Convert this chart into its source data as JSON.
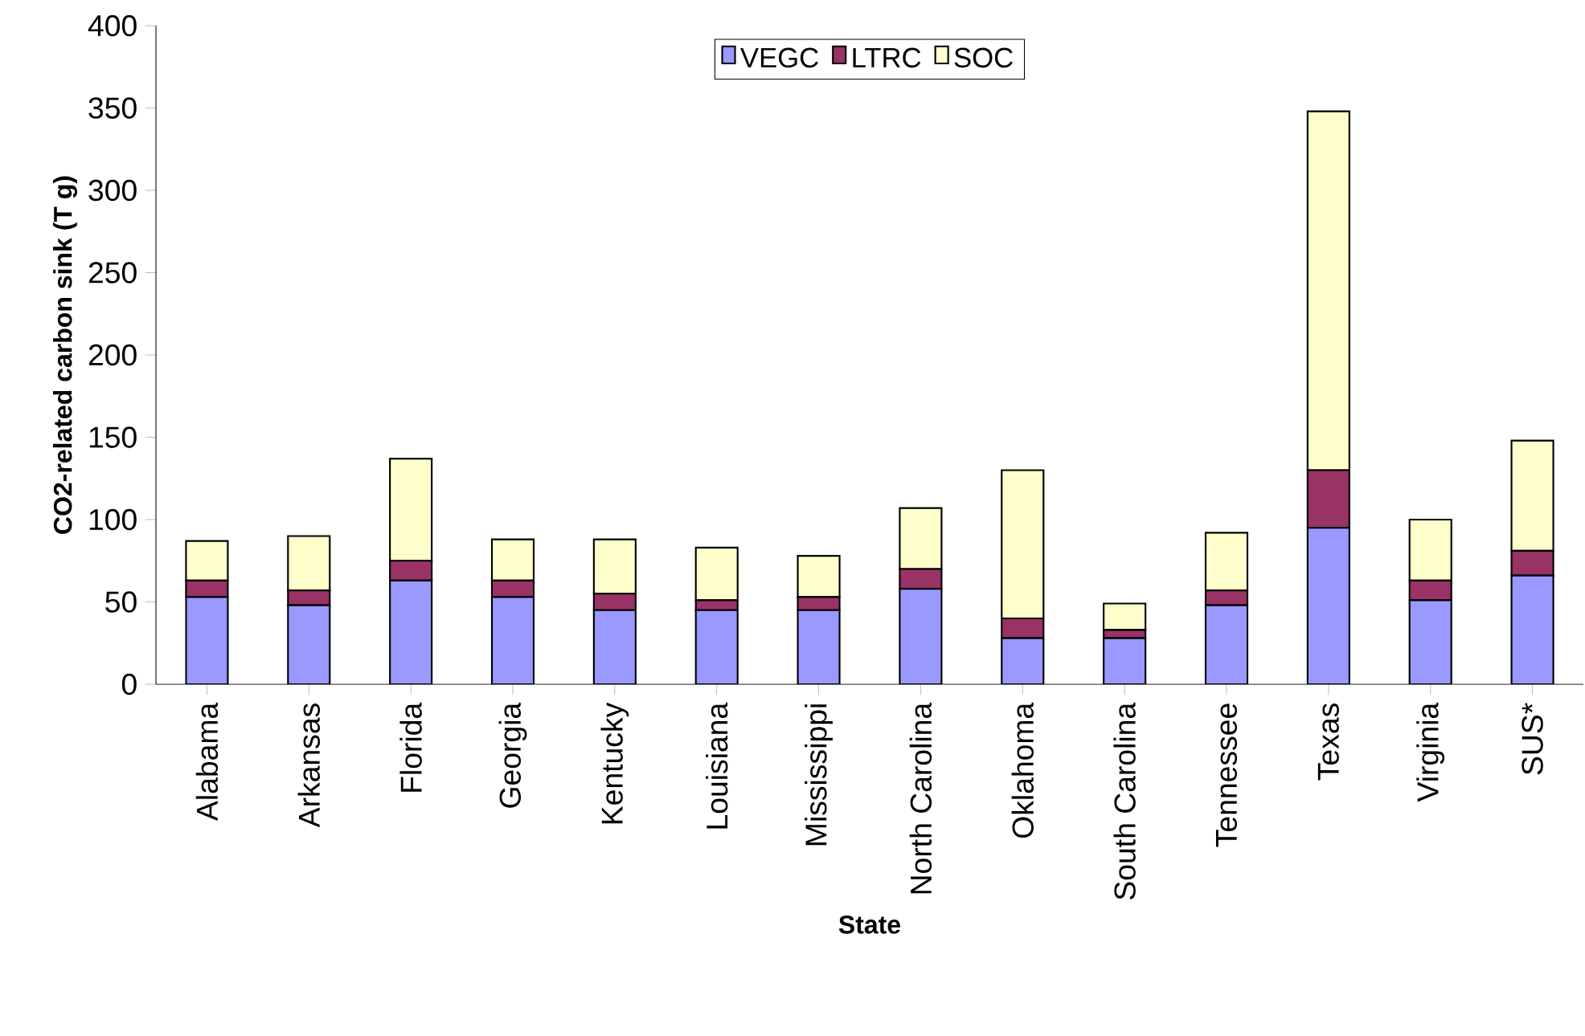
{
  "chart_data": {
    "type": "bar",
    "stacked": true,
    "xlabel": "State",
    "ylabel": "CO2-related carbon sink (T g)",
    "legend": "top",
    "categories": [
      "Alabama",
      "Arkansas",
      "Florida",
      "Georgia",
      "Kentucky",
      "Louisiana",
      "Mississippi",
      "North Carolina",
      "Oklahoma",
      "South Carolina",
      "Tennessee",
      "Texas",
      "Virginia",
      "SUS*"
    ],
    "ylim": [
      0,
      400
    ],
    "yticks": [
      0,
      50,
      100,
      150,
      200,
      250,
      300,
      350,
      400
    ],
    "series": [
      {
        "name": "VEGC",
        "color": "#9999ff",
        "values": [
          53,
          48,
          63,
          53,
          45,
          45,
          45,
          58,
          28,
          28,
          48,
          95,
          51,
          66
        ]
      },
      {
        "name": "LTRC",
        "color": "#993366",
        "values": [
          10,
          9,
          12,
          10,
          10,
          6,
          8,
          12,
          12,
          5,
          9,
          35,
          12,
          15
        ]
      },
      {
        "name": "SOC",
        "color": "#ffffcc",
        "values": [
          24,
          33,
          62,
          25,
          33,
          32,
          25,
          37,
          90,
          16,
          35,
          218,
          37,
          67
        ]
      }
    ]
  }
}
